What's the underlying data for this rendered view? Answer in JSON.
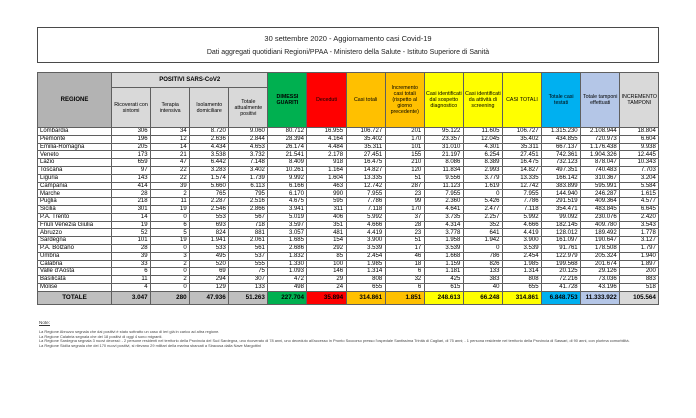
{
  "title_box": {
    "line1": "30 settembre 2020 - Aggiornamento casi Covid-19",
    "line2": "Dati aggregati quotidiani Regioni/PPAA - Ministero della Salute - Istituto Superiore di Sanità"
  },
  "colors": {
    "header_gray_dark": "#b3b3b3",
    "header_gray_light": "#d9d9d9",
    "green": "#00b050",
    "red": "#ff0000",
    "orange": "#ffc000",
    "yellow": "#ffff00",
    "cyan": "#00b0f0",
    "lavender": "#b4c6e7",
    "light_gray": "#d9d9d9",
    "totals_gray": "#bfbfbf"
  },
  "table": {
    "region_header": "REGIONE",
    "group_header": "POSITIVI SARS-CoV2",
    "sub_headers": [
      "Ricoverati con sintomi",
      "Terapia intensiva",
      "Isolamento domiciliare",
      "Totale attualmente positivi"
    ],
    "colored_headers": [
      {
        "label": "DIMESSI GUARITI",
        "color": "#00b050"
      },
      {
        "label": "Deceduti",
        "color": "#ff0000"
      },
      {
        "label": "Casi totali",
        "color": "#ffc000"
      },
      {
        "label": "Incremento casi totali (rispetto al giorno precedente)",
        "color": "#ffc000"
      },
      {
        "label": "Casi identificati dal sospetto diagnostico",
        "color": "#ffff00"
      },
      {
        "label": "Casi identificati da attività di screening",
        "color": "#ffff00"
      },
      {
        "label": "CASI TOTALI",
        "color": "#ffff00"
      },
      {
        "label": "Totale casi testati",
        "color": "#00b0f0"
      },
      {
        "label": "Totale tamponi effettuati",
        "color": "#b4c6e7"
      },
      {
        "label": "INCREMENTO TAMPONI",
        "color": "#d9d9d9"
      }
    ],
    "rows": [
      [
        "Lombardia",
        "306",
        "34",
        "8.720",
        "9.060",
        "80.712",
        "16.955",
        "106.727",
        "201",
        "95.122",
        "11.605",
        "106.727",
        "1.315.230",
        "2.108.944",
        "18.804"
      ],
      [
        "Piemonte",
        "196",
        "12",
        "2.636",
        "2.844",
        "28.394",
        "4.164",
        "35.402",
        "170",
        "23.357",
        "12.045",
        "35.402",
        "434.855",
        "720.973",
        "6.604"
      ],
      [
        "Emilia-Romagna",
        "205",
        "14",
        "4.434",
        "4.653",
        "26.174",
        "4.484",
        "35.311",
        "101",
        "31.010",
        "4.301",
        "35.311",
        "667.137",
        "1.176.438",
        "9.938"
      ],
      [
        "Veneto",
        "173",
        "21",
        "3.538",
        "3.732",
        "21.541",
        "2.178",
        "27.451",
        "155",
        "21.197",
        "6.254",
        "27.451",
        "742.361",
        "1.904.326",
        "12.445"
      ],
      [
        "Lazio",
        "659",
        "47",
        "6.442",
        "7.148",
        "8.409",
        "918",
        "16.475",
        "210",
        "8.086",
        "8.389",
        "16.475",
        "732.123",
        "878.047",
        "10.343"
      ],
      [
        "Toscana",
        "97",
        "22",
        "3.283",
        "3.402",
        "10.261",
        "1.164",
        "14.827",
        "120",
        "11.834",
        "2.993",
        "14.827",
        "497.351",
        "740.483",
        "7.703"
      ],
      [
        "Liguria",
        "143",
        "22",
        "1.574",
        "1.739",
        "9.992",
        "1.604",
        "13.335",
        "51",
        "9.556",
        "3.779",
        "13.335",
        "166.142",
        "310.367",
        "3.204"
      ],
      [
        "Campania",
        "414",
        "39",
        "5.660",
        "6.113",
        "6.166",
        "463",
        "12.742",
        "287",
        "11.123",
        "1.619",
        "12.742",
        "383.899",
        "595.991",
        "5.584"
      ],
      [
        "Marche",
        "28",
        "2",
        "765",
        "795",
        "6.170",
        "990",
        "7.955",
        "23",
        "7.955",
        "0",
        "7.955",
        "144.940",
        "246.287",
        "1.615"
      ],
      [
        "Puglia",
        "218",
        "11",
        "2.287",
        "2.516",
        "4.675",
        "595",
        "7.786",
        "99",
        "2.360",
        "5.426",
        "7.786",
        "291.519",
        "409.364",
        "4.577"
      ],
      [
        "Sicilia",
        "301",
        "19",
        "2.546",
        "2.866",
        "3.941",
        "311",
        "7.118",
        "170",
        "4.641",
        "2.477",
        "7.118",
        "354.471",
        "483.845",
        "6.645"
      ],
      [
        "P.A. Trento",
        "14",
        "0",
        "553",
        "567",
        "5.019",
        "406",
        "5.992",
        "37",
        "3.735",
        "2.257",
        "5.992",
        "99.092",
        "230.076",
        "2.420"
      ],
      [
        "Friuli Venezia Giulia",
        "19",
        "6",
        "693",
        "718",
        "3.597",
        "351",
        "4.666",
        "28",
        "4.314",
        "352",
        "4.666",
        "182.145",
        "409.780",
        "3.543"
      ],
      [
        "Abruzzo",
        "52",
        "5",
        "824",
        "881",
        "3.057",
        "481",
        "4.419",
        "23",
        "3.778",
        "641",
        "4.419",
        "128.012",
        "189.492",
        "1.778"
      ],
      [
        "Sardegna",
        "101",
        "19",
        "1.941",
        "2.061",
        "1.685",
        "154",
        "3.900",
        "51",
        "1.958",
        "1.942",
        "3.900",
        "161.097",
        "190.647",
        "3.127"
      ],
      [
        "P.A. Bolzano",
        "28",
        "0",
        "533",
        "561",
        "2.686",
        "292",
        "3.539",
        "17",
        "3.539",
        "0",
        "3.539",
        "91.761",
        "178.508",
        "1.797"
      ],
      [
        "Umbria",
        "39",
        "3",
        "495",
        "537",
        "1.832",
        "85",
        "2.454",
        "46",
        "1.668",
        "786",
        "2.454",
        "122.979",
        "205.324",
        "1.940"
      ],
      [
        "Calabria",
        "33",
        "2",
        "520",
        "555",
        "1.330",
        "100",
        "1.985",
        "18",
        "1.159",
        "826",
        "1.985",
        "199.568",
        "201.674",
        "1.897"
      ],
      [
        "Valle d'Aosta",
        "6",
        "0",
        "69",
        "75",
        "1.093",
        "146",
        "1.314",
        "6",
        "1.181",
        "133",
        "1.314",
        "20.125",
        "29.126",
        "200"
      ],
      [
        "Basilicata",
        "11",
        "2",
        "294",
        "307",
        "472",
        "29",
        "808",
        "32",
        "425",
        "383",
        "808",
        "72.216",
        "73.036",
        "883"
      ],
      [
        "Molise",
        "4",
        "0",
        "129",
        "133",
        "498",
        "24",
        "655",
        "6",
        "615",
        "40",
        "655",
        "41.728",
        "43.196",
        "518"
      ]
    ],
    "totals": [
      "TOTALE",
      "3.047",
      "280",
      "47.936",
      "51.263",
      "227.704",
      "35.894",
      "314.861",
      "1.851",
      "248.613",
      "66.248",
      "314.861",
      "6.848.753",
      "11.333.922",
      "105.564"
    ],
    "total_colors": [
      "#bfbfbf",
      "#bfbfbf",
      "#bfbfbf",
      "#bfbfbf",
      "#bfbfbf",
      "#00b050",
      "#ff0000",
      "#ffc000",
      "#ffc000",
      "#ffff00",
      "#ffff00",
      "#ffff00",
      "#00b0f0",
      "#b4c6e7",
      "#d9d9d9"
    ]
  },
  "notes": {
    "title": "Note:",
    "items": [
      "La Regione Abruzzo segnala che dai positivi è stato sottratto un caso di ieri già in carico ad altra regione.",
      "La Regione Calabria segnala che dei 18 positivi di oggi 4 sono migranti.",
      "La Regione Sardegna  segnala 3 nuovi decessi: - 2 persone residenti nel territorio della Provincia del Sud Sardegna, uno ricoverato di 78 anni, uno deceduto all'accesso in Pronto Soccorso presso l'ospedale Santissima Trinità di Cagliari, di 75 anni; - 1 persona residente nel territorio della Provincia di Sassari, di 90 anni, con plurima comorbilità.",
      "La Regione Sicilia segnala che dei 170 nuovi positivi, si rilevano 29 militari della marina sbarcati a Siracusa dalla Nave Margottini"
    ]
  }
}
